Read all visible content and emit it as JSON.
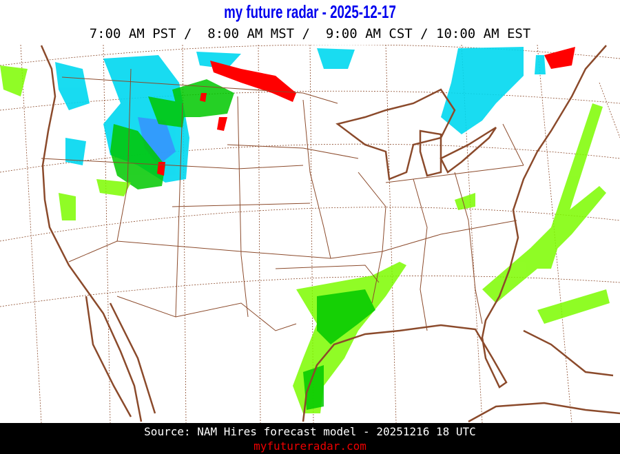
{
  "header": {
    "title": "my future radar - 2025-12-17",
    "times": "7:00 AM PST /  8:00 AM MST /  9:00 AM CST / 10:00 AM EST"
  },
  "footer": {
    "source": "Source: NAM Hires forecast model - 20251216 18 UTC",
    "site": "myfutureradar.com"
  },
  "colors": {
    "title": "#0000ee",
    "borders": "#8b4a2b",
    "rain_light": "#7cfc00",
    "rain_moderate": "#00c800",
    "snow": "#00d8f0",
    "snow_heavy": "#3a8cff",
    "mix": "#ff0000",
    "site": "#ee0000"
  }
}
